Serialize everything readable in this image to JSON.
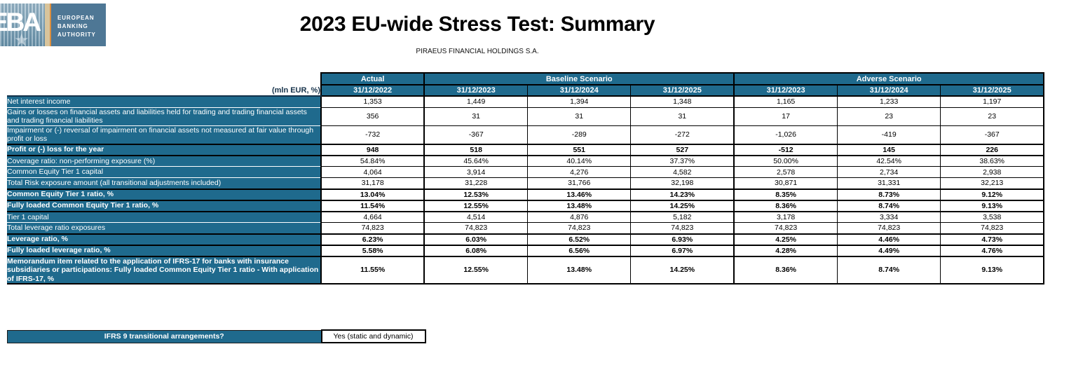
{
  "logo": {
    "acronym": "EBA",
    "name_lines": [
      "EUROPEAN",
      "BANKING",
      "AUTHORITY"
    ],
    "star_icon": "star-icon"
  },
  "title": "2023 EU-wide Stress Test: Summary",
  "subtitle": "PIRAEUS FINANCIAL HOLDINGS S.A.",
  "colors": {
    "header_teal": "#1F6A8D",
    "border_black": "#000000",
    "text_white": "#FFFFFF",
    "logo_slate": "#4E7795",
    "logo_light_blue": "#8FB0C3",
    "logo_tan": "#D8C49C",
    "logo_orange": "#DD8F3F"
  },
  "table": {
    "unit_label": "(mln EUR, %)",
    "column_groups": [
      {
        "label": "Actual",
        "span": 1
      },
      {
        "label": "Baseline Scenario",
        "span": 3
      },
      {
        "label": "Adverse Scenario",
        "span": 3
      }
    ],
    "date_headers": [
      "31/12/2022",
      "31/12/2023",
      "31/12/2024",
      "31/12/2025",
      "31/12/2023",
      "31/12/2024",
      "31/12/2025"
    ],
    "rows": [
      {
        "label": "Net interest income",
        "bold": false,
        "values": [
          "1,353",
          "1,449",
          "1,394",
          "1,348",
          "1,165",
          "1,233",
          "1,197"
        ]
      },
      {
        "label": "Gains or losses on financial assets and liabilities held for trading and trading financial assets and trading financial liabilities",
        "bold": false,
        "values": [
          "356",
          "31",
          "31",
          "31",
          "17",
          "23",
          "23"
        ]
      },
      {
        "label": "Impairment or (-) reversal of impairment on financial assets not measured at fair value through profit or loss",
        "bold": false,
        "values": [
          "-732",
          "-367",
          "-289",
          "-272",
          "-1,026",
          "-419",
          "-367"
        ]
      },
      {
        "label": "Profit or (-) loss for the year",
        "bold": true,
        "values": [
          "948",
          "518",
          "551",
          "527",
          "-512",
          "145",
          "226"
        ]
      },
      {
        "label": "Coverage ratio: non-performing exposure (%)",
        "bold": false,
        "values": [
          "54.84%",
          "45.64%",
          "40.14%",
          "37.37%",
          "50.00%",
          "42.54%",
          "38.63%"
        ]
      },
      {
        "label": "Common Equity Tier 1 capital",
        "bold": false,
        "values": [
          "4,064",
          "3,914",
          "4,276",
          "4,582",
          "2,578",
          "2,734",
          "2,938"
        ]
      },
      {
        "label": "Total Risk exposure amount (all transitional adjustments included)",
        "bold": false,
        "values": [
          "31,178",
          "31,228",
          "31,766",
          "32,198",
          "30,871",
          "31,331",
          "32,213"
        ]
      },
      {
        "label": "Common Equity Tier 1 ratio, %",
        "bold": true,
        "values": [
          "13.04%",
          "12.53%",
          "13.46%",
          "14.23%",
          "8.35%",
          "8.73%",
          "9.12%"
        ]
      },
      {
        "label": "Fully loaded Common Equity Tier 1 ratio, %",
        "bold": true,
        "values": [
          "11.54%",
          "12.55%",
          "13.48%",
          "14.25%",
          "8.36%",
          "8.74%",
          "9.13%"
        ]
      },
      {
        "label": "Tier 1 capital",
        "bold": false,
        "values": [
          "4,664",
          "4,514",
          "4,876",
          "5,182",
          "3,178",
          "3,334",
          "3,538"
        ]
      },
      {
        "label": "Total leverage ratio exposures",
        "bold": false,
        "values": [
          "74,823",
          "74,823",
          "74,823",
          "74,823",
          "74,823",
          "74,823",
          "74,823"
        ]
      },
      {
        "label": "Leverage ratio, %",
        "bold": true,
        "values": [
          "6.23%",
          "6.03%",
          "6.52%",
          "6.93%",
          "4.25%",
          "4.46%",
          "4.73%"
        ]
      },
      {
        "label": "Fully loaded leverage ratio, %",
        "bold": true,
        "values": [
          "5.58%",
          "6.08%",
          "6.56%",
          "6.97%",
          "4.28%",
          "4.49%",
          "4.76%"
        ]
      },
      {
        "label": "Memorandum item related to the application of IFRS-17 for banks with insurance subsidiaries or participations: Fully loaded Common Equity Tier 1 ratio - With application of IFRS-17, %",
        "bold": true,
        "values": [
          "11.55%",
          "12.55%",
          "13.48%",
          "14.25%",
          "8.36%",
          "8.74%",
          "9.13%"
        ]
      }
    ]
  },
  "footer": {
    "question": "IFRS 9 transitional arrangements?",
    "answer": "Yes (static and dynamic)"
  }
}
